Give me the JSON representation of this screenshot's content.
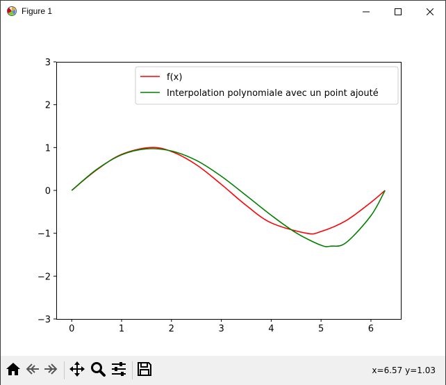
{
  "window": {
    "title": "Figure 1",
    "icons": {
      "app": "matplotlib-icon",
      "minimize": "minimize-icon",
      "maximize": "maximize-icon",
      "close": "close-icon"
    }
  },
  "toolbar": {
    "buttons": [
      {
        "name": "home-button",
        "icon": "home-icon"
      },
      {
        "name": "back-button",
        "icon": "back-arrow-icon"
      },
      {
        "name": "forward-button",
        "icon": "forward-arrow-icon"
      },
      {
        "name": "pan-button",
        "icon": "move-icon"
      },
      {
        "name": "zoom-button",
        "icon": "zoom-icon"
      },
      {
        "name": "configure-subplots-button",
        "icon": "sliders-icon"
      },
      {
        "name": "save-button",
        "icon": "save-icon"
      }
    ],
    "coordinates": "x=6.57 y=1.03"
  },
  "chart_data": {
    "type": "line",
    "title": "",
    "xlabel": "",
    "ylabel": "",
    "xlim": [
      -0.31,
      6.6
    ],
    "ylim": [
      -3,
      3
    ],
    "xticks": [
      "0",
      "1",
      "2",
      "3",
      "4",
      "5",
      "6"
    ],
    "yticks": [
      "−3",
      "−2",
      "−1",
      "0",
      "1",
      "2",
      "3"
    ],
    "grid": false,
    "legend_position": "top-right",
    "series": [
      {
        "name": "f(x)",
        "color": "#ff0000",
        "x": [
          0.0,
          0.5,
          1.0,
          1.5708,
          2.0,
          2.5,
          3.0,
          3.5,
          4.0,
          4.7124,
          5.0,
          5.5,
          6.0,
          6.2832
        ],
        "y": [
          0.0,
          0.479,
          0.841,
          1.0,
          0.909,
          0.598,
          0.141,
          -0.351,
          -0.757,
          -1.0,
          -0.959,
          -0.706,
          -0.279,
          0.0
        ]
      },
      {
        "name": "Interpolation polynomiale avec un point ajouté",
        "color": "#008000",
        "x": [
          0.0,
          0.5,
          1.0,
          1.5,
          2.0,
          2.5,
          3.0,
          3.5,
          4.0,
          4.5,
          5.0,
          5.2,
          5.5,
          6.0,
          6.2832
        ],
        "y": [
          0.0,
          0.49,
          0.83,
          0.97,
          0.92,
          0.7,
          0.33,
          -0.12,
          -0.58,
          -0.99,
          -1.28,
          -1.3,
          -1.22,
          -0.59,
          0.0
        ]
      }
    ]
  }
}
